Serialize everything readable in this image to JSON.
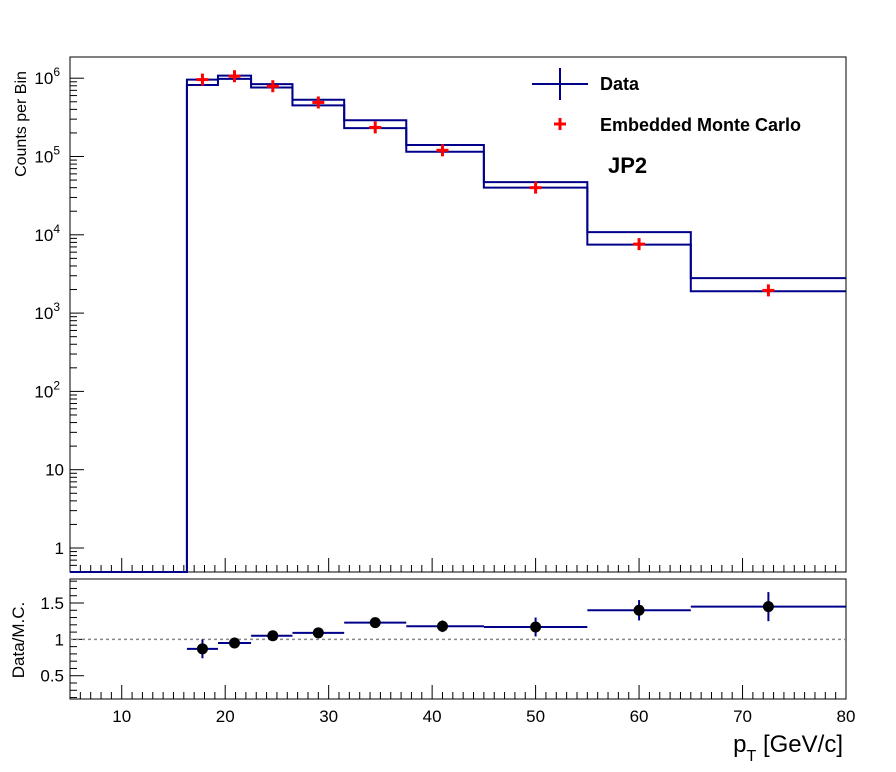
{
  "chart_data": [
    {
      "type": "line",
      "panel": "main",
      "ylabel": "Counts per Bin",
      "yscale": "log",
      "xlim": [
        5,
        80
      ],
      "ylim": [
        0.5,
        2000000
      ],
      "y_ticks": [
        {
          "value": 1,
          "label": "1"
        },
        {
          "value": 10,
          "label": "10"
        },
        {
          "value": 100,
          "base": "10",
          "exp": "2"
        },
        {
          "value": 1000,
          "base": "10",
          "exp": "3"
        },
        {
          "value": 10000,
          "base": "10",
          "exp": "4"
        },
        {
          "value": 100000,
          "base": "10",
          "exp": "5"
        },
        {
          "value": 1000000,
          "base": "10",
          "exp": "6"
        }
      ],
      "annotation": "JP2",
      "legend_position": "top-right",
      "series": [
        {
          "name": "Data",
          "style": "histogram-band",
          "color": "#00008b",
          "bins": [
            {
              "lo": 5.0,
              "hi": 16.3,
              "low": 0.45,
              "high": 0.45
            },
            {
              "lo": 16.3,
              "hi": 19.3,
              "low": 820000,
              "high": 960000
            },
            {
              "lo": 19.3,
              "hi": 22.5,
              "low": 980000,
              "high": 1080000
            },
            {
              "lo": 22.5,
              "hi": 26.5,
              "low": 760000,
              "high": 840000
            },
            {
              "lo": 26.5,
              "hi": 31.5,
              "low": 450000,
              "high": 530000
            },
            {
              "lo": 31.5,
              "hi": 37.5,
              "low": 230000,
              "high": 290000
            },
            {
              "lo": 37.5,
              "hi": 45.0,
              "low": 115000,
              "high": 140000
            },
            {
              "lo": 45.0,
              "hi": 55.0,
              "low": 40000,
              "high": 47000
            },
            {
              "lo": 55.0,
              "hi": 65.0,
              "low": 7500,
              "high": 10800
            },
            {
              "lo": 65.0,
              "hi": 80.0,
              "low": 1900,
              "high": 2800
            }
          ]
        },
        {
          "name": "Embedded Monte Carlo",
          "style": "marker-cross",
          "color": "#ff0000",
          "points": [
            {
              "x": 17.8,
              "y": 960000
            },
            {
              "x": 20.9,
              "y": 1060000
            },
            {
              "x": 24.6,
              "y": 790000
            },
            {
              "x": 29.0,
              "y": 490000
            },
            {
              "x": 34.5,
              "y": 235000
            },
            {
              "x": 41.0,
              "y": 120000
            },
            {
              "x": 50.0,
              "y": 40000
            },
            {
              "x": 60.0,
              "y": 7600
            },
            {
              "x": 72.5,
              "y": 1950
            }
          ]
        }
      ]
    },
    {
      "type": "scatter",
      "panel": "ratio",
      "ylabel": "Data/M.C.",
      "xlabel": "p_T [GeV/c]",
      "xlim": [
        5,
        80
      ],
      "ylim": [
        0.18,
        1.83
      ],
      "x_ticks": [
        10,
        20,
        30,
        40,
        50,
        60,
        70,
        80
      ],
      "y_ticks": [
        {
          "value": 0.5,
          "label": "0.5"
        },
        {
          "value": 1.0,
          "label": "1"
        },
        {
          "value": 1.5,
          "label": "1.5"
        }
      ],
      "reference_line": 1.0,
      "series": [
        {
          "name": "Data/M.C.",
          "color": "#000000",
          "points": [
            {
              "x": 17.8,
              "lo": 16.3,
              "hi": 19.3,
              "y": 0.87,
              "err": 0.13
            },
            {
              "x": 20.9,
              "lo": 19.3,
              "hi": 22.5,
              "y": 0.95,
              "err": 0.07
            },
            {
              "x": 24.6,
              "lo": 22.5,
              "hi": 26.5,
              "y": 1.05,
              "err": 0.07
            },
            {
              "x": 29.0,
              "lo": 26.5,
              "hi": 31.5,
              "y": 1.09,
              "err": 0.07
            },
            {
              "x": 34.5,
              "lo": 31.5,
              "hi": 37.5,
              "y": 1.23,
              "err": 0.06
            },
            {
              "x": 41.0,
              "lo": 37.5,
              "hi": 45.0,
              "y": 1.18,
              "err": 0.08
            },
            {
              "x": 50.0,
              "lo": 45.0,
              "hi": 55.0,
              "y": 1.17,
              "err": 0.13
            },
            {
              "x": 60.0,
              "lo": 55.0,
              "hi": 65.0,
              "y": 1.4,
              "err": 0.14
            },
            {
              "x": 72.5,
              "lo": 65.0,
              "hi": 80.0,
              "y": 1.45,
              "err": 0.2
            }
          ]
        }
      ]
    }
  ],
  "colors": {
    "data": "#00008b",
    "mc": "#ff0000",
    "ratio": "#000000",
    "reference": "#888888"
  }
}
